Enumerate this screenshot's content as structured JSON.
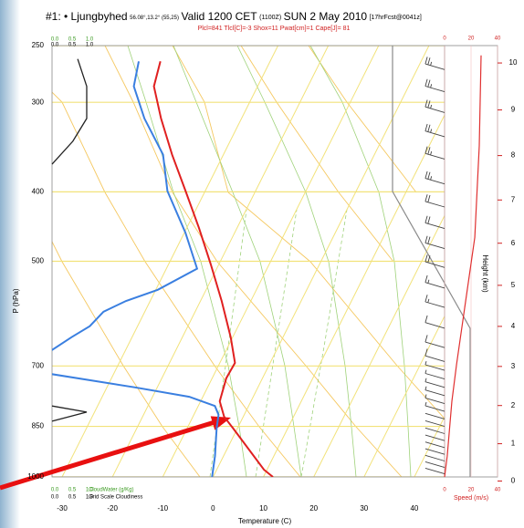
{
  "title": {
    "station": "#1: • Ljungbyhed",
    "coords": "56.08°,13.2° (55,25)",
    "valid": "Valid 1200 CET",
    "utc": "(1100Z)",
    "date": "SUN 2 May 2010",
    "forecast": "[17hrFcst@0041z]"
  },
  "chart_data": {
    "type": "skewt",
    "subtitle": "Plcl=841 Tlcl[C]=-3 Shox=11 Pwat[cm]=1 Cape[J]= 81",
    "xlabel": "Temperature (C)",
    "ylabel": "P (hPa)",
    "xlim": [
      -32,
      46
    ],
    "xticks": [
      -30,
      -20,
      -10,
      0,
      10,
      20,
      30,
      40
    ],
    "ylim": [
      1000,
      250
    ],
    "yticks": [
      250,
      300,
      400,
      500,
      700,
      850,
      1000
    ],
    "log_y": true,
    "grid": true,
    "series": [
      {
        "color": "#e02020",
        "pressure": [
          1000,
          977,
          856,
          824,
          784,
          728,
          693,
          638,
          568,
          505,
          449,
          399,
          355,
          316,
          285,
          263
        ],
        "values": [
          11.9,
          9.4,
          -0.8,
          -3.8,
          -6.2,
          -7.2,
          -7.0,
          -10.4,
          -15.8,
          -21.6,
          -27.6,
          -33.9,
          -40.2,
          -46.0,
          -50.6,
          -51.8
        ]
      },
      {
        "color": "#3a7fe0",
        "pressure": [
          1000,
          935,
          856,
          819,
          796,
          773,
          750,
          718,
          null,
          667,
          638,
          616,
          588,
          568,
          548,
          512,
          456,
          399,
          355,
          316,
          285,
          263
        ],
        "values": [
          -0.2,
          -1.7,
          -4.1,
          -5.1,
          -6.7,
          -12.7,
          -24.4,
          -42.6,
          null,
          -44.8,
          -42.0,
          -39.5,
          -38.2,
          -34.8,
          -29.6,
          -23.9,
          -29.8,
          -37.5,
          -42.0,
          -49.3,
          -54.6,
          -56.1
        ]
      }
    ],
    "cloud_panel": {
      "xlim": [
        0,
        1
      ],
      "cloud_label": "CloudWater (g/Kg)",
      "cloudiness_label": "Grid Scale Cloudiness",
      "cloud_ticks": [
        {
          "value": 0,
          "label": "0.0"
        },
        {
          "value": 0.5,
          "label": "0.5"
        },
        {
          "value": 1,
          "label": "1.0"
        }
      ],
      "cloudiness_ticks": [
        {
          "value": 0,
          "label": "0.0"
        },
        {
          "value": 0.5,
          "label": "0.5"
        },
        {
          "value": 1,
          "label": "1.0"
        }
      ],
      "color": "#222222",
      "pressure": [
        261,
        285,
        316,
        340,
        366,
        null,
        796,
        812,
        836
      ],
      "values": [
        0.74,
        1.0,
        1.0,
        0.6,
        0,
        null,
        0,
        1.0,
        0
      ]
    },
    "wind_panel": {
      "xlabel": "Speed (m/s)",
      "xlim": [
        0,
        40
      ],
      "xticks": [
        0,
        20,
        40
      ],
      "color": "#e03030",
      "pressure": [
        1000,
        935,
        784,
        697,
        568,
        463,
        345,
        258
      ],
      "values": [
        0,
        2,
        5.5,
        9,
        15.9,
        22.8,
        26.2,
        27.6
      ],
      "barbs": {
        "pressure": [
          270,
          290,
          310,
          335,
          360,
          390,
          420,
          450,
          480,
          510,
          545,
          580,
          620,
          660,
          690,
          710,
          730,
          750,
          770,
          790,
          810,
          830,
          850,
          870,
          890,
          910,
          930,
          950,
          970,
          990
        ],
        "speed": [
          27,
          27,
          27,
          26,
          26,
          25,
          24,
          23,
          22,
          20,
          18,
          16,
          13,
          11,
          10,
          9,
          8,
          7,
          6,
          5,
          5,
          4,
          4,
          3,
          3,
          3,
          2,
          2,
          1,
          1
        ]
      }
    },
    "height_axis": {
      "label": "Height (km)",
      "ticks": [
        0,
        1,
        2,
        3,
        4,
        5,
        6,
        7,
        8,
        9,
        10
      ]
    }
  }
}
